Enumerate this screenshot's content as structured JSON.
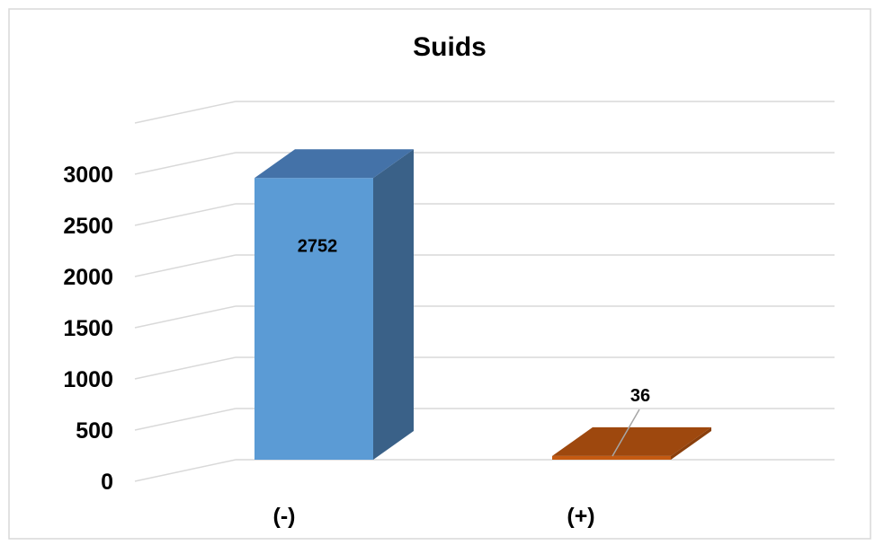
{
  "chart_data": {
    "type": "bar",
    "title": "Suids",
    "categories": [
      "(-)",
      "(+)"
    ],
    "values": [
      2752,
      36
    ],
    "data_labels": [
      "2752",
      "36"
    ],
    "ylim": [
      0,
      3000
    ],
    "y_ticks": [
      0,
      500,
      1000,
      1500,
      2000,
      2500,
      3000
    ],
    "y_tick_labels": [
      "0",
      "500",
      "1000",
      "1500",
      "2000",
      "2500",
      "3000"
    ],
    "grid": true,
    "style": "3d-column",
    "colors": {
      "bars": [
        "#5b9bd5",
        "#c55a11"
      ],
      "bar_top": [
        "#4472a8",
        "#9e480e"
      ],
      "bar_side": [
        "#3a6188",
        "#8a3f0c"
      ],
      "grid": "#d9d9d9",
      "frame": "#d9d9d9",
      "text": "#000000"
    }
  }
}
